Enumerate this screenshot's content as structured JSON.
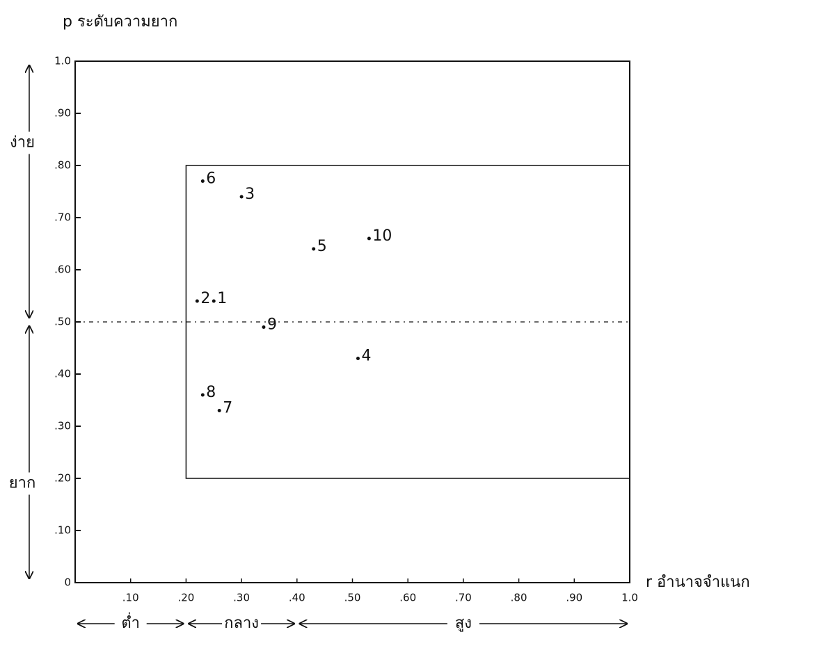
{
  "chart_data": {
    "type": "scatter",
    "y_label": "p ระดับความยาก",
    "x_label": "r อำนาจจำแนก",
    "x": [
      0.23,
      0.3,
      0.43,
      0.53,
      0.22,
      0.25,
      0.34,
      0.51,
      0.23,
      0.26
    ],
    "values": [
      0.77,
      0.74,
      0.64,
      0.66,
      0.54,
      0.54,
      0.49,
      0.43,
      0.36,
      0.33
    ],
    "labels": [
      "6",
      "3",
      "5",
      "10",
      "2",
      "1",
      "9",
      "4",
      "8",
      "7"
    ],
    "color": "#111111",
    "xlim": [
      0,
      1.0
    ],
    "ylim": [
      0,
      1.0
    ],
    "xticks": [
      {
        "value": 0.1,
        "label": ".10"
      },
      {
        "value": 0.2,
        "label": ".20"
      },
      {
        "value": 0.3,
        "label": ".30"
      },
      {
        "value": 0.4,
        "label": ".40"
      },
      {
        "value": 0.5,
        "label": ".50"
      },
      {
        "value": 0.6,
        "label": ".60"
      },
      {
        "value": 0.7,
        "label": ".70"
      },
      {
        "value": 0.8,
        "label": ".80"
      },
      {
        "value": 0.9,
        "label": ".90"
      },
      {
        "value": 1.0,
        "label": "1.0"
      }
    ],
    "yticks": [
      0,
      {
        "value": 0.1,
        "label": ".10"
      },
      {
        "value": 0.2,
        "label": ".20"
      },
      {
        "value": 0.3,
        "label": ".30"
      },
      {
        "value": 0.4,
        "label": ".40"
      },
      {
        "value": 0.5,
        "label": ".50"
      },
      {
        "value": 0.6,
        "label": ".60"
      },
      {
        "value": 0.7,
        "label": ".70"
      },
      {
        "value": 0.8,
        "label": ".80"
      },
      {
        "value": 0.9,
        "label": ".90"
      },
      {
        "value": 1.0,
        "label": "1.0"
      }
    ],
    "region": {
      "xlim": [
        0.2,
        1.0
      ],
      "ylim": [
        0.2,
        0.8
      ]
    },
    "reference_y": 0.5,
    "x_groups": [
      {
        "label": "ต่ำ",
        "range": [
          0,
          0.2
        ]
      },
      {
        "label": "กลาง",
        "range": [
          0.2,
          0.4
        ]
      },
      {
        "label": "สูง",
        "range": [
          0.4,
          1.0
        ]
      }
    ],
    "y_groups": [
      {
        "label": "ง่าย",
        "range": [
          0.5,
          1.0
        ]
      },
      {
        "label": "ยาก",
        "range": [
          0,
          0.5
        ]
      }
    ]
  }
}
